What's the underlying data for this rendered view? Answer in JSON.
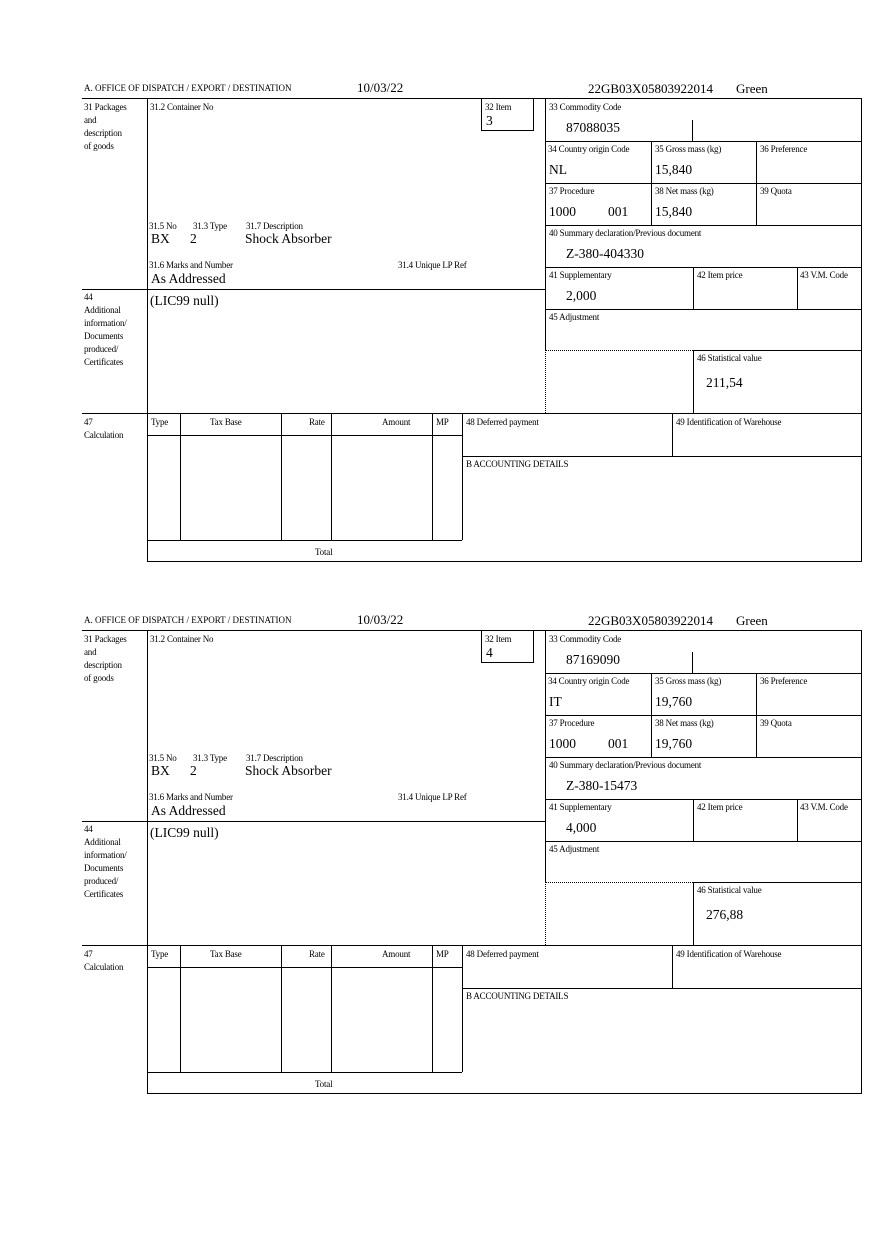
{
  "labels": {
    "office": "A. OFFICE OF DISPATCH / EXPORT / DESTINATION",
    "packages": [
      "31 Packages",
      "and",
      "description",
      "of goods"
    ],
    "container_no": "31.2 Container No",
    "item": "32 Item",
    "no": "31.5 No",
    "type": "31.3 Type",
    "description": "31.7 Description",
    "marks": "31.6 Marks and Number",
    "unique_lp": "31.4 Unique LP Ref",
    "additional": [
      "44",
      "Additional",
      "information/",
      "Documents",
      "produced/",
      "Certificates"
    ],
    "commodity": "33 Commodity Code",
    "country": "34 Country origin Code",
    "gross": "35 Gross mass (kg)",
    "preference": "36 Preference",
    "procedure": "37 Procedure",
    "net": "38 Net mass (kg)",
    "quota": "39 Quota",
    "summary": "40 Summary declaration/Previous document",
    "supplementary": "41 Supplementary",
    "item_price": "42 Item price",
    "vm_code": "43 V.M. Code",
    "adjustment": "45 Adjustment",
    "statistical": "46 Statistical value",
    "calc": [
      "47",
      "Calculation"
    ],
    "calc_cols": [
      "Type",
      "Tax Base",
      "Rate",
      "Amount",
      "MP"
    ],
    "deferred": "48 Deferred payment",
    "warehouse": "49 Identification of Warehouse",
    "accounting": "B ACCOUNTING DETAILS",
    "total": "Total"
  },
  "forms": [
    {
      "date": "10/03/22",
      "reference": "22GB03X05803922014",
      "route": "Green",
      "item": "3",
      "no": "BX",
      "type": "2",
      "description": "Shock Absorber",
      "marks": "As Addressed",
      "additional": "(LIC99 null)",
      "commodity": "87088035",
      "country": "NL",
      "gross": "15,840",
      "procedure": "1000",
      "procedure_code": "001",
      "net": "15,840",
      "summary": "Z-380-404330",
      "supplementary": "2,000",
      "statistical": "211,54"
    },
    {
      "date": "10/03/22",
      "reference": "22GB03X05803922014",
      "route": "Green",
      "item": "4",
      "no": "BX",
      "type": "2",
      "description": "Shock Absorber",
      "marks": "As Addressed",
      "additional": "(LIC99 null)",
      "commodity": "87169090",
      "country": "IT",
      "gross": "19,760",
      "procedure": "1000",
      "procedure_code": "001",
      "net": "19,760",
      "summary": "Z-380-15473",
      "supplementary": "4,000",
      "statistical": "276,88"
    }
  ]
}
